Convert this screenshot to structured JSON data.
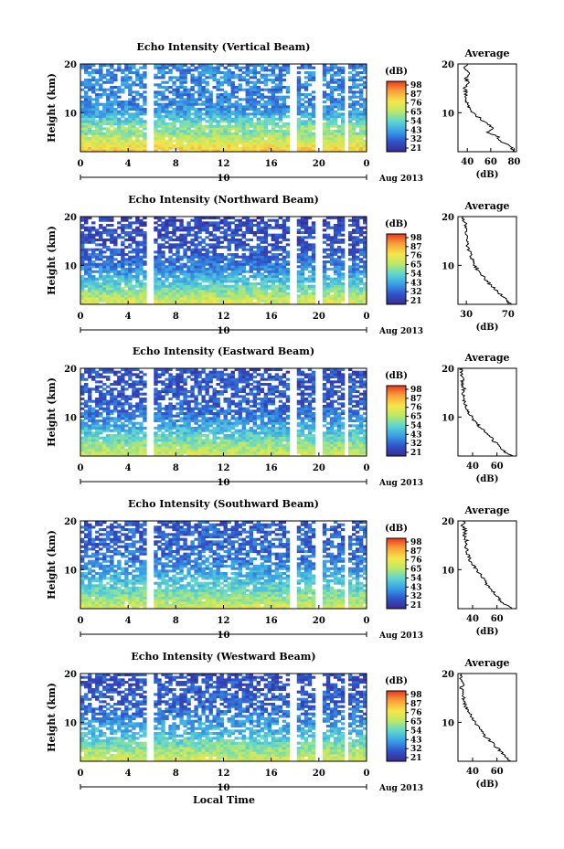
{
  "figure": {
    "xlabel": "Local Time",
    "date_label": "Aug 2013",
    "day_label": "10"
  },
  "chart_data": [
    {
      "type": "heatmap",
      "title": "Echo Intensity (Vertical Beam)",
      "ylabel": "Height (km)",
      "xlim": [
        0,
        24
      ],
      "ylim": [
        2,
        20
      ],
      "xticks": [
        "0",
        "4",
        "8",
        "12",
        "16",
        "20",
        "0"
      ],
      "yticks": [
        "10",
        "20"
      ],
      "gaps_hours": [
        [
          5.5,
          6.2
        ],
        [
          17.5,
          18.1
        ],
        [
          19.7,
          20.2
        ],
        [
          22.2,
          22.6
        ]
      ],
      "colorbar": {
        "label": "(dB)",
        "ticks": [
          "98",
          "87",
          "76",
          "65",
          "54",
          "43",
          "32",
          "21"
        ],
        "range": [
          21,
          98
        ]
      },
      "profile": {
        "title": "Average",
        "xlabel": "(dB)",
        "xticks": [
          "40",
          "60",
          "80"
        ],
        "xlim": [
          32,
          82
        ],
        "yticks": [
          "10",
          "20"
        ],
        "height": [
          2,
          3,
          4,
          5,
          6,
          7,
          8,
          9,
          10,
          11,
          12,
          13,
          14,
          15,
          16,
          17,
          18,
          19,
          20
        ],
        "value": [
          80,
          77,
          70,
          66,
          58,
          62,
          55,
          50,
          44,
          41,
          40,
          39,
          39,
          38,
          41,
          39,
          42,
          37,
          40
        ]
      }
    },
    {
      "type": "heatmap",
      "title": "Echo Intensity (Northward Beam)",
      "ylabel": "Height (km)",
      "xlim": [
        0,
        24
      ],
      "ylim": [
        2,
        20
      ],
      "xticks": [
        "0",
        "4",
        "8",
        "12",
        "16",
        "20",
        "0"
      ],
      "yticks": [
        "10",
        "20"
      ],
      "gaps_hours": [
        [
          5.5,
          6.2
        ],
        [
          17.5,
          18.1
        ],
        [
          19.7,
          20.2
        ],
        [
          22.2,
          22.6
        ]
      ],
      "colorbar": {
        "label": "(dB)",
        "ticks": [
          "98",
          "87",
          "76",
          "65",
          "54",
          "43",
          "32",
          "21"
        ],
        "range": [
          21,
          98
        ]
      },
      "profile": {
        "title": "Average",
        "xlabel": "(dB)",
        "xticks": [
          "30",
          "70"
        ],
        "xlim": [
          22,
          78
        ],
        "yticks": [
          "10",
          "20"
        ],
        "height": [
          2,
          3,
          4,
          5,
          6,
          7,
          8,
          9,
          10,
          11,
          12,
          13,
          14,
          15,
          16,
          17,
          18,
          19,
          20
        ],
        "value": [
          72,
          68,
          63,
          58,
          53,
          49,
          45,
          41,
          38,
          36,
          34,
          33,
          31,
          30,
          31,
          29,
          30,
          28,
          27
        ]
      }
    },
    {
      "type": "heatmap",
      "title": "Echo Intensity (Eastward Beam)",
      "ylabel": "Height (km)",
      "xlim": [
        0,
        24
      ],
      "ylim": [
        2,
        20
      ],
      "xticks": [
        "0",
        "4",
        "8",
        "12",
        "16",
        "20",
        "0"
      ],
      "yticks": [
        "10",
        "20"
      ],
      "gaps_hours": [
        [
          5.5,
          6.2
        ],
        [
          17.5,
          18.1
        ],
        [
          19.7,
          20.2
        ],
        [
          22.2,
          22.6
        ]
      ],
      "colorbar": {
        "label": "(dB)",
        "ticks": [
          "98",
          "87",
          "76",
          "65",
          "54",
          "43",
          "32",
          "21"
        ],
        "range": [
          21,
          98
        ]
      },
      "profile": {
        "title": "Average",
        "xlabel": "(dB)",
        "xticks": [
          "40",
          "60"
        ],
        "xlim": [
          28,
          76
        ],
        "yticks": [
          "10",
          "20"
        ],
        "height": [
          2,
          3,
          4,
          5,
          6,
          7,
          8,
          9,
          10,
          11,
          12,
          13,
          14,
          15,
          16,
          17,
          18,
          19,
          20
        ],
        "value": [
          72,
          66,
          63,
          58,
          54,
          50,
          46,
          42,
          39,
          37,
          35,
          33,
          32,
          32,
          33,
          31,
          32,
          30,
          31
        ]
      }
    },
    {
      "type": "heatmap",
      "title": "Echo Intensity (Southward Beam)",
      "ylabel": "Height (km)",
      "xlim": [
        0,
        24
      ],
      "ylim": [
        2,
        20
      ],
      "xticks": [
        "0",
        "4",
        "8",
        "12",
        "16",
        "20",
        "0"
      ],
      "yticks": [
        "10",
        "20"
      ],
      "gaps_hours": [
        [
          5.5,
          6.2
        ],
        [
          17.5,
          18.1
        ],
        [
          19.7,
          20.2
        ],
        [
          22.2,
          22.6
        ]
      ],
      "colorbar": {
        "label": "(dB)",
        "ticks": [
          "98",
          "87",
          "76",
          "65",
          "54",
          "43",
          "32",
          "21"
        ],
        "range": [
          21,
          98
        ]
      },
      "profile": {
        "title": "Average",
        "xlabel": "(dB)",
        "xticks": [
          "40",
          "60"
        ],
        "xlim": [
          28,
          76
        ],
        "yticks": [
          "10",
          "20"
        ],
        "height": [
          2,
          3,
          4,
          5,
          6,
          7,
          8,
          9,
          10,
          11,
          12,
          13,
          14,
          15,
          16,
          17,
          18,
          19,
          20
        ],
        "value": [
          72,
          66,
          62,
          58,
          55,
          52,
          49,
          46,
          43,
          40,
          38,
          36,
          35,
          34,
          35,
          33,
          34,
          32,
          33
        ]
      }
    },
    {
      "type": "heatmap",
      "title": "Echo Intensity (Westward Beam)",
      "ylabel": "Height (km)",
      "xlim": [
        0,
        24
      ],
      "ylim": [
        2,
        20
      ],
      "xticks": [
        "0",
        "4",
        "8",
        "12",
        "16",
        "20",
        "0"
      ],
      "yticks": [
        "10",
        "20"
      ],
      "gaps_hours": [
        [
          5.5,
          6.2
        ],
        [
          17.5,
          18.1
        ],
        [
          19.7,
          20.2
        ],
        [
          22.2,
          22.6
        ]
      ],
      "colorbar": {
        "label": "(dB)",
        "ticks": [
          "98",
          "87",
          "76",
          "65",
          "54",
          "43",
          "32",
          "21"
        ],
        "range": [
          21,
          98
        ]
      },
      "profile": {
        "title": "Average",
        "xlabel": "(dB)",
        "xticks": [
          "40",
          "60"
        ],
        "xlim": [
          28,
          76
        ],
        "yticks": [
          "10",
          "20"
        ],
        "height": [
          2,
          3,
          4,
          5,
          6,
          7,
          8,
          9,
          10,
          11,
          12,
          13,
          14,
          15,
          16,
          17,
          18,
          19,
          20
        ],
        "value": [
          72,
          66,
          63,
          59,
          55,
          51,
          48,
          45,
          42,
          39,
          37,
          35,
          33,
          33,
          33,
          31,
          32,
          30,
          31
        ]
      }
    }
  ]
}
